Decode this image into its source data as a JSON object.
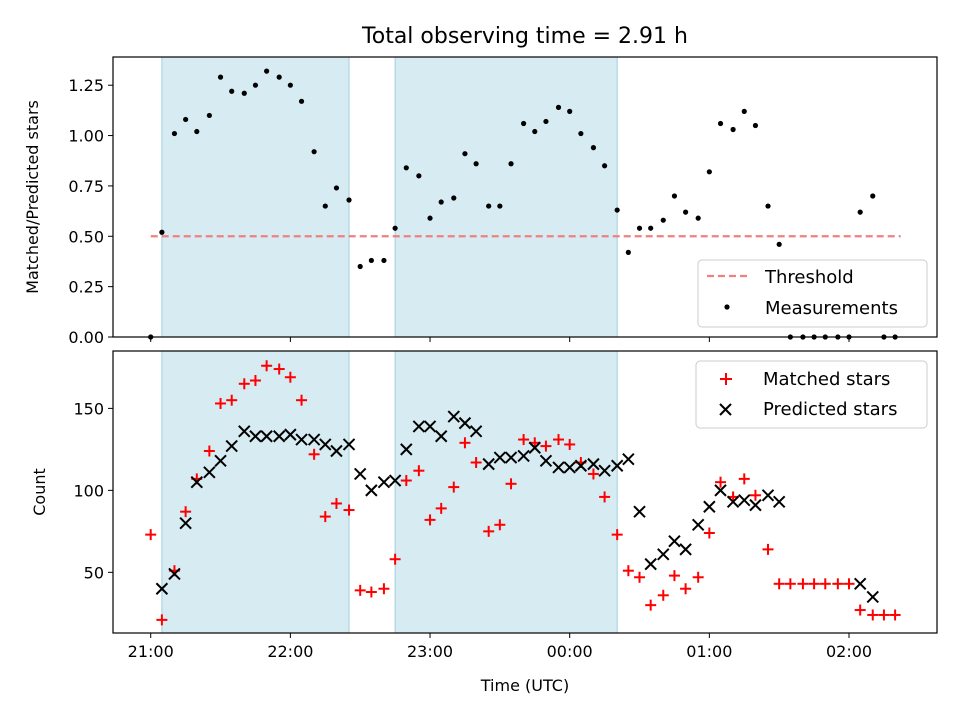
{
  "chart_data": [
    {
      "type": "scatter",
      "title": "Total observing time = 2.91 h",
      "xlabel": "",
      "ylabel": "Matched/Predicted stars",
      "ylim": [
        0,
        1.39
      ],
      "yticks": [
        0.0,
        0.25,
        0.5,
        0.75,
        1.0,
        1.25
      ],
      "ytick_labels": [
        "0.00",
        "0.25",
        "0.50",
        "0.75",
        "1.00",
        "1.25"
      ],
      "xlim_hours": [
        20.73,
        26.63
      ],
      "shaded_intervals_hours": [
        [
          21.08,
          22.42
        ],
        [
          22.75,
          24.34
        ]
      ],
      "threshold": {
        "name": "Threshold",
        "value": 0.5,
        "x_range_hours": [
          21.0,
          26.37
        ],
        "color": "#f08080"
      },
      "legend": {
        "position": "lower right",
        "entries": [
          "Threshold",
          "Measurements"
        ]
      },
      "series": [
        {
          "name": "Measurements",
          "color": "#000000",
          "points": [
            [
              21.0,
              0.0
            ],
            [
              21.08,
              0.52
            ],
            [
              21.17,
              1.01
            ],
            [
              21.25,
              1.08
            ],
            [
              21.33,
              1.02
            ],
            [
              21.42,
              1.1
            ],
            [
              21.5,
              1.29
            ],
            [
              21.58,
              1.22
            ],
            [
              21.67,
              1.21
            ],
            [
              21.75,
              1.25
            ],
            [
              21.83,
              1.32
            ],
            [
              21.92,
              1.29
            ],
            [
              22.0,
              1.25
            ],
            [
              22.08,
              1.17
            ],
            [
              22.17,
              0.92
            ],
            [
              22.25,
              0.65
            ],
            [
              22.33,
              0.74
            ],
            [
              22.42,
              0.68
            ],
            [
              22.5,
              0.35
            ],
            [
              22.58,
              0.38
            ],
            [
              22.67,
              0.38
            ],
            [
              22.75,
              0.54
            ],
            [
              22.83,
              0.84
            ],
            [
              22.92,
              0.8
            ],
            [
              23.0,
              0.59
            ],
            [
              23.08,
              0.67
            ],
            [
              23.17,
              0.69
            ],
            [
              23.25,
              0.91
            ],
            [
              23.33,
              0.86
            ],
            [
              23.42,
              0.65
            ],
            [
              23.5,
              0.65
            ],
            [
              23.58,
              0.86
            ],
            [
              23.67,
              1.06
            ],
            [
              23.75,
              1.02
            ],
            [
              23.83,
              1.07
            ],
            [
              23.92,
              1.14
            ],
            [
              24.0,
              1.12
            ],
            [
              24.08,
              1.01
            ],
            [
              24.17,
              0.94
            ],
            [
              24.25,
              0.85
            ],
            [
              24.34,
              0.63
            ],
            [
              24.42,
              0.42
            ],
            [
              24.5,
              0.54
            ],
            [
              24.58,
              0.54
            ],
            [
              24.67,
              0.58
            ],
            [
              24.75,
              0.7
            ],
            [
              24.83,
              0.62
            ],
            [
              24.92,
              0.59
            ],
            [
              25.0,
              0.82
            ],
            [
              25.08,
              1.06
            ],
            [
              25.17,
              1.03
            ],
            [
              25.25,
              1.12
            ],
            [
              25.33,
              1.05
            ],
            [
              25.42,
              0.65
            ],
            [
              25.5,
              0.46
            ],
            [
              25.58,
              0.0
            ],
            [
              25.67,
              0.0
            ],
            [
              25.75,
              0.0
            ],
            [
              25.83,
              0.0
            ],
            [
              25.92,
              0.0
            ],
            [
              26.0,
              0.0
            ],
            [
              26.08,
              0.62
            ],
            [
              26.17,
              0.7
            ],
            [
              26.25,
              0.0
            ],
            [
              26.33,
              0.0
            ]
          ]
        }
      ]
    },
    {
      "type": "scatter",
      "title": "",
      "xlabel": "Time (UTC)",
      "ylabel": "Count",
      "ylim": [
        13,
        185
      ],
      "yticks": [
        50,
        100,
        150
      ],
      "ytick_labels": [
        "50",
        "100",
        "150"
      ],
      "xlim_hours": [
        20.73,
        26.63
      ],
      "xticks_hours": [
        21,
        22,
        23,
        24,
        25,
        26
      ],
      "xtick_labels": [
        "21:00",
        "22:00",
        "23:00",
        "00:00",
        "01:00",
        "02:00"
      ],
      "shaded_intervals_hours": [
        [
          21.08,
          22.42
        ],
        [
          22.75,
          24.34
        ]
      ],
      "legend": {
        "position": "upper right",
        "entries": [
          "Matched stars",
          "Predicted stars"
        ]
      },
      "series": [
        {
          "name": "Matched stars",
          "marker": "plus",
          "color": "#ff0000",
          "points": [
            [
              21.0,
              73
            ],
            [
              21.08,
              21
            ],
            [
              21.17,
              51
            ],
            [
              21.25,
              87
            ],
            [
              21.33,
              107
            ],
            [
              21.42,
              124
            ],
            [
              21.5,
              153
            ],
            [
              21.58,
              155
            ],
            [
              21.67,
              165
            ],
            [
              21.75,
              167
            ],
            [
              21.83,
              176
            ],
            [
              21.92,
              174
            ],
            [
              22.0,
              169
            ],
            [
              22.08,
              155
            ],
            [
              22.17,
              122
            ],
            [
              22.25,
              84
            ],
            [
              22.33,
              92
            ],
            [
              22.42,
              88
            ],
            [
              22.5,
              39
            ],
            [
              22.58,
              38
            ],
            [
              22.67,
              40
            ],
            [
              22.75,
              58
            ],
            [
              22.83,
              106
            ],
            [
              22.92,
              112
            ],
            [
              23.0,
              82
            ],
            [
              23.08,
              89
            ],
            [
              23.17,
              102
            ],
            [
              23.25,
              129
            ],
            [
              23.33,
              117
            ],
            [
              23.42,
              75
            ],
            [
              23.5,
              79
            ],
            [
              23.58,
              104
            ],
            [
              23.67,
              131
            ],
            [
              23.75,
              129
            ],
            [
              23.83,
              127
            ],
            [
              23.92,
              131
            ],
            [
              24.0,
              128
            ],
            [
              24.08,
              117
            ],
            [
              24.17,
              110
            ],
            [
              24.25,
              96
            ],
            [
              24.34,
              73
            ],
            [
              24.42,
              51
            ],
            [
              24.5,
              47
            ],
            [
              24.58,
              30
            ],
            [
              24.67,
              36
            ],
            [
              24.75,
              48
            ],
            [
              24.83,
              40
            ],
            [
              24.92,
              47
            ],
            [
              25.0,
              74
            ],
            [
              25.08,
              105
            ],
            [
              25.17,
              96
            ],
            [
              25.25,
              107
            ],
            [
              25.33,
              97
            ],
            [
              25.42,
              64
            ],
            [
              25.5,
              43
            ],
            [
              25.58,
              43
            ],
            [
              25.67,
              43
            ],
            [
              25.75,
              43
            ],
            [
              25.83,
              43
            ],
            [
              25.92,
              43
            ],
            [
              26.0,
              43
            ],
            [
              26.08,
              27
            ],
            [
              26.17,
              24
            ],
            [
              26.25,
              24
            ],
            [
              26.33,
              24
            ]
          ]
        },
        {
          "name": "Predicted stars",
          "marker": "x",
          "color": "#000000",
          "points": [
            [
              21.08,
              40
            ],
            [
              21.17,
              49
            ],
            [
              21.25,
              80
            ],
            [
              21.33,
              105
            ],
            [
              21.42,
              111
            ],
            [
              21.5,
              118
            ],
            [
              21.58,
              127
            ],
            [
              21.67,
              136
            ],
            [
              21.75,
              133
            ],
            [
              21.83,
              133
            ],
            [
              21.92,
              133
            ],
            [
              22.0,
              134
            ],
            [
              22.08,
              131
            ],
            [
              22.17,
              131
            ],
            [
              22.25,
              128
            ],
            [
              22.33,
              124
            ],
            [
              22.42,
              128
            ],
            [
              22.5,
              110
            ],
            [
              22.58,
              100
            ],
            [
              22.67,
              105
            ],
            [
              22.75,
              106
            ],
            [
              22.83,
              125
            ],
            [
              22.92,
              139
            ],
            [
              23.0,
              139
            ],
            [
              23.08,
              133
            ],
            [
              23.17,
              145
            ],
            [
              23.25,
              141
            ],
            [
              23.33,
              136
            ],
            [
              23.42,
              116
            ],
            [
              23.5,
              120
            ],
            [
              23.58,
              120
            ],
            [
              23.67,
              121
            ],
            [
              23.75,
              126
            ],
            [
              23.83,
              118
            ],
            [
              23.92,
              114
            ],
            [
              24.0,
              114
            ],
            [
              24.08,
              115
            ],
            [
              24.17,
              116
            ],
            [
              24.25,
              112
            ],
            [
              24.34,
              115
            ],
            [
              24.42,
              119
            ],
            [
              24.5,
              87
            ],
            [
              24.58,
              55
            ],
            [
              24.67,
              61
            ],
            [
              24.75,
              69
            ],
            [
              24.83,
              64
            ],
            [
              24.92,
              79
            ],
            [
              25.0,
              90
            ],
            [
              25.08,
              100
            ],
            [
              25.17,
              93
            ],
            [
              25.25,
              94
            ],
            [
              25.33,
              91
            ],
            [
              25.42,
              97
            ],
            [
              25.5,
              93
            ],
            [
              26.08,
              43
            ],
            [
              26.17,
              35
            ]
          ]
        }
      ]
    }
  ]
}
